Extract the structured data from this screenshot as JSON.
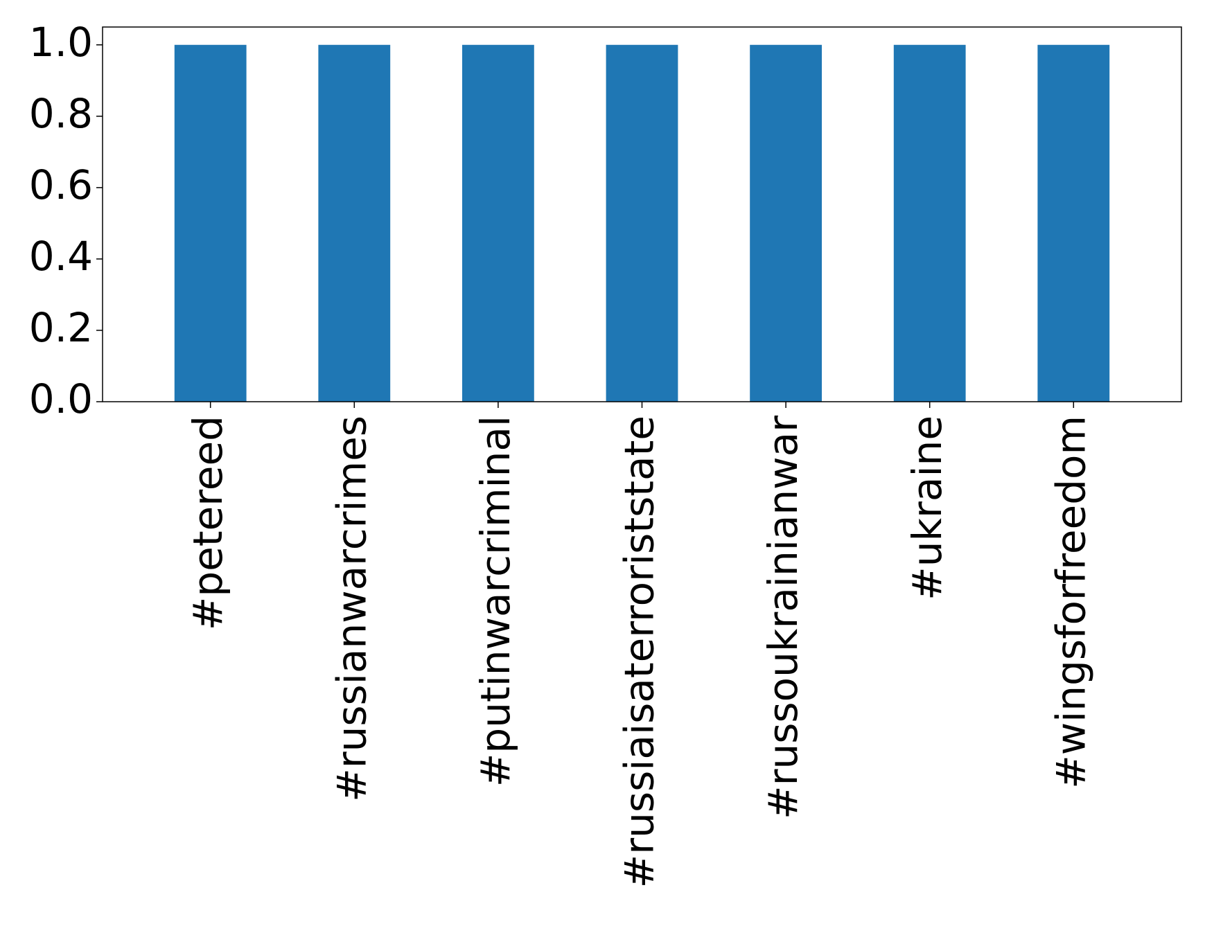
{
  "chart_data": {
    "type": "bar",
    "title": "",
    "xlabel": "",
    "ylabel": "",
    "categories": [
      "#petereed",
      "#russianwarcrimes",
      "#putinwarcriminal",
      "#russiaisaterroriststate",
      "#russoukrainianwar",
      "#ukraine",
      "#wingsforfreedom"
    ],
    "values": [
      1.0,
      1.0,
      1.0,
      1.0,
      1.0,
      1.0,
      1.0
    ],
    "ylim": [
      0,
      1.05
    ],
    "yticks": [
      "0.0",
      "0.2",
      "0.4",
      "0.6",
      "0.8",
      "1.0"
    ],
    "grid": false,
    "bar_color": "#1f77b4"
  }
}
